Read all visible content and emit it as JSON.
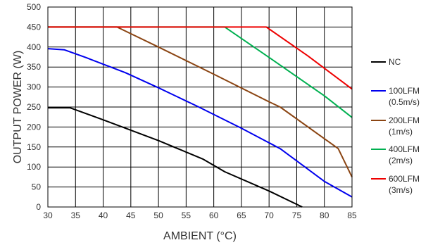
{
  "chart_data": {
    "type": "line",
    "title": "",
    "xlabel": "AMBIENT (°C)",
    "ylabel": "OUTPUT POWER (W)",
    "xlim": [
      30,
      85
    ],
    "ylim": [
      0,
      500
    ],
    "xticks": [
      30,
      35,
      40,
      45,
      50,
      55,
      60,
      65,
      70,
      75,
      80,
      85
    ],
    "yticks": [
      0,
      50,
      100,
      150,
      200,
      250,
      300,
      350,
      400,
      450,
      500
    ],
    "grid": true,
    "legend_position": "right",
    "series": [
      {
        "name": [
          "NC"
        ],
        "color": "#000000",
        "points": [
          [
            30,
            248
          ],
          [
            34,
            248
          ],
          [
            40,
            218
          ],
          [
            50,
            166
          ],
          [
            58,
            120
          ],
          [
            62,
            88
          ],
          [
            70,
            40
          ],
          [
            76,
            0
          ]
        ]
      },
      {
        "name": [
          "100LFM",
          "(0.5m/s)"
        ],
        "color": "#0000ee",
        "points": [
          [
            30,
            396
          ],
          [
            33,
            393
          ],
          [
            37,
            373
          ],
          [
            44,
            336
          ],
          [
            50,
            298
          ],
          [
            57,
            252
          ],
          [
            65,
            197
          ],
          [
            72,
            146
          ],
          [
            80,
            64
          ],
          [
            85,
            25
          ]
        ]
      },
      {
        "name": [
          "200LFM",
          "(1m/s)"
        ],
        "color": "#8b4513",
        "points": [
          [
            30,
            450
          ],
          [
            42.5,
            450
          ],
          [
            50,
            400
          ],
          [
            60,
            332
          ],
          [
            70,
            263
          ],
          [
            72,
            250
          ],
          [
            82.5,
            146
          ],
          [
            85,
            75
          ]
        ]
      },
      {
        "name": [
          "400LFM",
          "(2m/s)"
        ],
        "color": "#00b050",
        "points": [
          [
            30,
            450
          ],
          [
            62,
            450
          ],
          [
            70,
            374
          ],
          [
            80,
            278
          ],
          [
            85,
            224
          ]
        ]
      },
      {
        "name": [
          "600LFM",
          "(3m/s)"
        ],
        "color": "#ee0000",
        "points": [
          [
            30,
            450
          ],
          [
            69.5,
            450
          ],
          [
            77,
            378
          ],
          [
            85,
            295
          ]
        ]
      }
    ]
  }
}
